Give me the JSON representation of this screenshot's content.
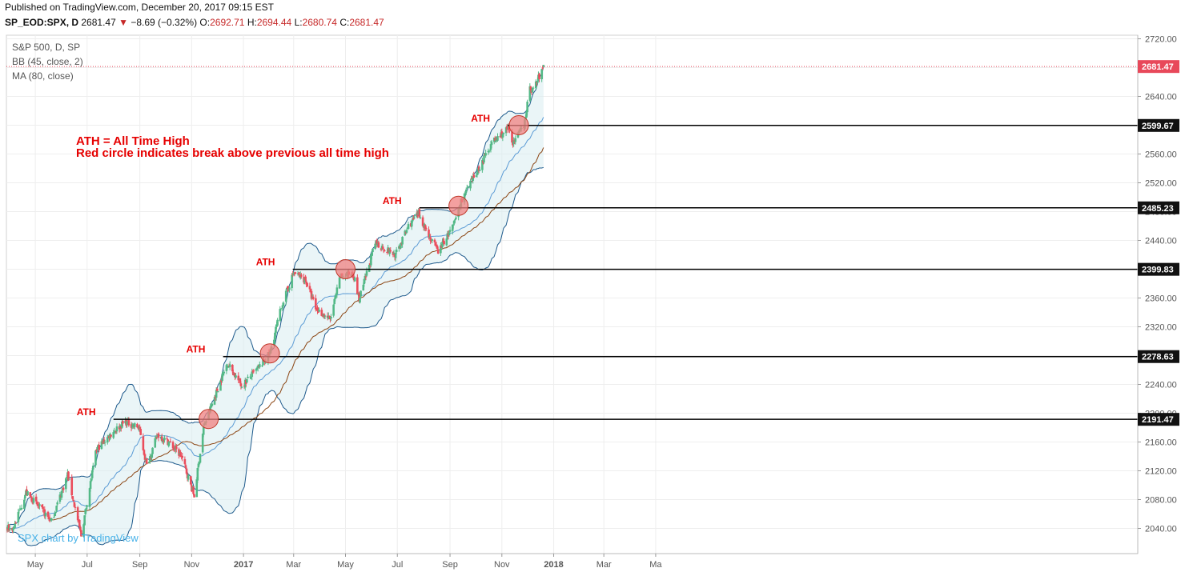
{
  "header": {
    "published": "Published on TradingView.com, December 20, 2017 09:15 EST",
    "symbol": "SP_EOD:SPX, D",
    "last": "2681.47",
    "change": "−8.69 (−0.32%)",
    "o_label": "O:",
    "o": "2692.71",
    "h_label": "H:",
    "h": "2694.44",
    "l_label": "L:",
    "l": "2680.74",
    "c_label": "C:",
    "c": "2681.47"
  },
  "legend": {
    "line1": "S&P 500, D, SP",
    "line2": "BB (45, close, 2)",
    "line3": "MA (80, close)"
  },
  "annotation": {
    "line1": "ATH = All Time High",
    "line2": "Red circle indicates break above previous all time high"
  },
  "watermark": "SPX chart by TradingView",
  "colors": {
    "up": "#53b987",
    "down": "#eb4d5c",
    "annotation": "#e60000",
    "bb_line": "#1e5a8c",
    "bb_fill": "#d8ecf0",
    "ma": "#8b4513",
    "mid": "#5b9bd5",
    "last_price": "#e8485a",
    "circle": "#f08080"
  },
  "chart_data": {
    "type": "candlestick",
    "x_axis_ticks": [
      "May",
      "Jul",
      "Sep",
      "Nov",
      "2017",
      "Mar",
      "May",
      "Jul",
      "Sep",
      "Nov",
      "2018",
      "Mar",
      "Ma"
    ],
    "y_axis_ticks": [
      2040,
      2080,
      2120,
      2160,
      2200,
      2240,
      2280,
      2320,
      2360,
      2400,
      2440,
      2480,
      2520,
      2560,
      2600,
      2640,
      2680,
      2720
    ],
    "ylim": [
      2005,
      2725
    ],
    "last_price": 2681.47,
    "levels": [
      {
        "value": 2191.47,
        "label": "2191.47",
        "ath_label": "ATH"
      },
      {
        "value": 2278.63,
        "label": "2278.63",
        "ath_label": "ATH"
      },
      {
        "value": 2399.83,
        "label": "2399.83",
        "ath_label": "ATH"
      },
      {
        "value": 2485.23,
        "label": "2485.23",
        "ath_label": "ATH"
      },
      {
        "value": 2599.67,
        "label": "2599.67",
        "ath_label": "ATH"
      }
    ],
    "breakouts": [
      {
        "date": "2016-11-21",
        "price": 2192
      },
      {
        "date": "2017-02-01",
        "price": 2283
      },
      {
        "date": "2017-05-01",
        "price": 2400
      },
      {
        "date": "2017-09-11",
        "price": 2488
      },
      {
        "date": "2017-11-21",
        "price": 2600
      }
    ],
    "price_path": [
      [
        "2016-04-05",
        2040
      ],
      [
        "2016-04-20",
        2090
      ],
      [
        "2016-05-05",
        2070
      ],
      [
        "2016-05-20",
        2050
      ],
      [
        "2016-06-08",
        2115
      ],
      [
        "2016-06-24",
        2030
      ],
      [
        "2016-07-12",
        2150
      ],
      [
        "2016-08-01",
        2175
      ],
      [
        "2016-08-15",
        2188
      ],
      [
        "2016-08-31",
        2180
      ],
      [
        "2016-09-09",
        2127
      ],
      [
        "2016-09-22",
        2170
      ],
      [
        "2016-10-05",
        2160
      ],
      [
        "2016-10-20",
        2140
      ],
      [
        "2016-11-04",
        2085
      ],
      [
        "2016-11-15",
        2180
      ],
      [
        "2016-11-25",
        2213
      ],
      [
        "2016-12-13",
        2270
      ],
      [
        "2016-12-30",
        2238
      ],
      [
        "2017-01-20",
        2265
      ],
      [
        "2017-02-01",
        2283
      ],
      [
        "2017-02-15",
        2350
      ],
      [
        "2017-03-01",
        2395
      ],
      [
        "2017-03-15",
        2385
      ],
      [
        "2017-03-27",
        2345
      ],
      [
        "2017-04-13",
        2330
      ],
      [
        "2017-04-25",
        2390
      ],
      [
        "2017-05-10",
        2395
      ],
      [
        "2017-05-17",
        2357
      ],
      [
        "2017-06-05",
        2436
      ],
      [
        "2017-06-29",
        2420
      ],
      [
        "2017-07-14",
        2460
      ],
      [
        "2017-07-26",
        2477
      ],
      [
        "2017-08-10",
        2440
      ],
      [
        "2017-08-18",
        2425
      ],
      [
        "2017-09-05",
        2460
      ],
      [
        "2017-09-15",
        2498
      ],
      [
        "2017-10-05",
        2540
      ],
      [
        "2017-10-20",
        2575
      ],
      [
        "2017-11-08",
        2595
      ],
      [
        "2017-11-15",
        2575
      ],
      [
        "2017-11-27",
        2601
      ],
      [
        "2017-12-04",
        2650
      ],
      [
        "2017-12-08",
        2650
      ],
      [
        "2017-12-20",
        2681
      ]
    ]
  }
}
